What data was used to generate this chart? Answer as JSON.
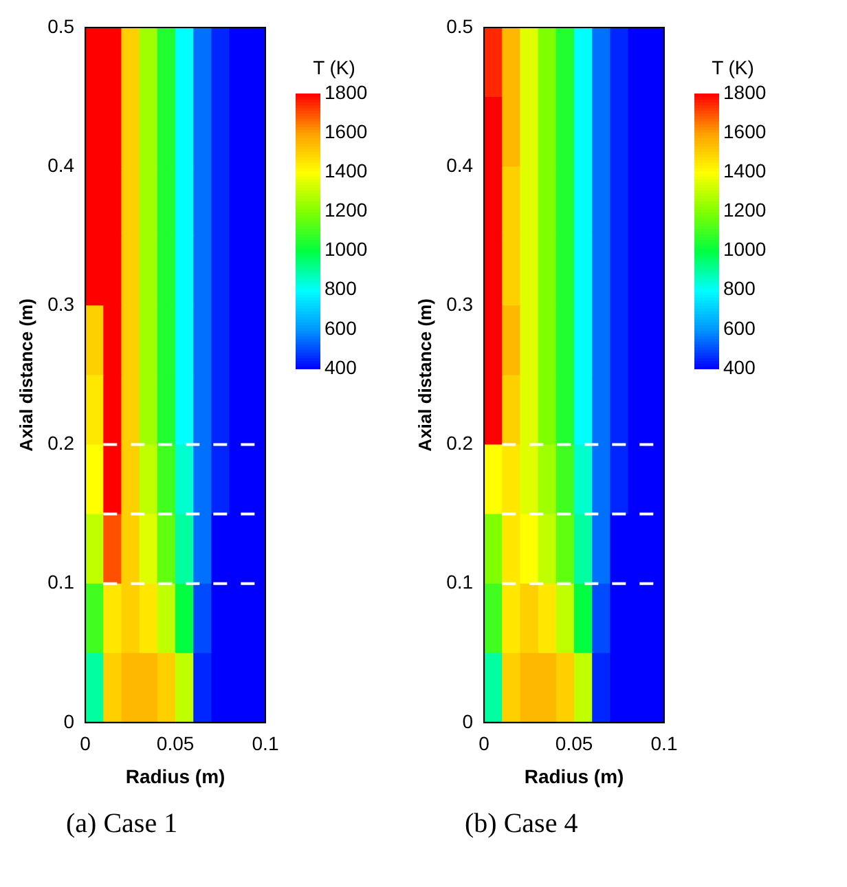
{
  "chart_data": [
    {
      "type": "heatmap",
      "title": "(a) Case 1",
      "xlabel": "Radius (m)",
      "ylabel": "Axial distance (m)",
      "xlim": [
        0,
        0.1
      ],
      "xticks": [
        0,
        0.05,
        0.1
      ],
      "ylim": [
        0,
        0.5
      ],
      "yticks": [
        0,
        0.1,
        0.2,
        0.3,
        0.4,
        0.5
      ],
      "clim": [
        400,
        1800
      ],
      "cticks": [
        400,
        600,
        800,
        1000,
        1200,
        1400,
        1600,
        1800
      ],
      "clabel": "T (K)",
      "cells": [
        [
          1800,
          1800,
          1500,
          1250,
          1050,
          800,
          550,
          450,
          400,
          400
        ],
        [
          1800,
          1800,
          1500,
          1250,
          1050,
          800,
          550,
          450,
          400,
          400
        ],
        [
          1800,
          1800,
          1500,
          1250,
          1050,
          800,
          550,
          450,
          400,
          400
        ],
        [
          1800,
          1800,
          1500,
          1250,
          1050,
          800,
          550,
          450,
          400,
          400
        ],
        [
          1500,
          1800,
          1500,
          1250,
          1050,
          800,
          550,
          450,
          400,
          400
        ],
        [
          1450,
          1800,
          1500,
          1250,
          1050,
          800,
          550,
          450,
          400,
          400
        ],
        [
          1400,
          1800,
          1500,
          1300,
          1100,
          850,
          550,
          450,
          400,
          400
        ],
        [
          1300,
          1700,
          1500,
          1350,
          1150,
          900,
          550,
          400,
          400,
          400
        ],
        [
          1100,
          1450,
          1500,
          1450,
          1300,
          1000,
          500,
          400,
          400,
          400
        ],
        [
          900,
          1500,
          1550,
          1550,
          1500,
          1300,
          450,
          400,
          400,
          400
        ]
      ],
      "ref_lines": [
        {
          "axis": "y",
          "value": 0.1,
          "color": "#ffffff",
          "line_style": "dashed"
        },
        {
          "axis": "y",
          "value": 0.15,
          "color": "#ffffff",
          "line_style": "dashed"
        },
        {
          "axis": "y",
          "value": 0.2,
          "color": "#ffffff",
          "line_style": "dashed"
        }
      ],
      "grid": false
    },
    {
      "type": "heatmap",
      "title": "(b) Case 4",
      "xlabel": "Radius (m)",
      "ylabel": "Axial distance (m)",
      "xlim": [
        0,
        0.1
      ],
      "xticks": [
        0,
        0.05,
        0.1
      ],
      "ylim": [
        0,
        0.5
      ],
      "yticks": [
        0,
        0.1,
        0.2,
        0.3,
        0.4,
        0.5
      ],
      "clim": [
        400,
        1800
      ],
      "cticks": [
        400,
        600,
        800,
        1000,
        1200,
        1400,
        1600,
        1800
      ],
      "clabel": "T (K)",
      "cells": [
        [
          1750,
          1550,
          1350,
          1200,
          1050,
          800,
          550,
          450,
          400,
          400
        ],
        [
          1800,
          1550,
          1350,
          1200,
          1050,
          800,
          550,
          450,
          400,
          400
        ],
        [
          1800,
          1500,
          1350,
          1200,
          1050,
          800,
          550,
          450,
          400,
          400
        ],
        [
          1800,
          1500,
          1350,
          1200,
          1050,
          800,
          550,
          450,
          400,
          400
        ],
        [
          1800,
          1550,
          1350,
          1200,
          1050,
          800,
          550,
          450,
          400,
          400
        ],
        [
          1800,
          1500,
          1350,
          1200,
          1050,
          800,
          550,
          450,
          400,
          400
        ],
        [
          1400,
          1450,
          1350,
          1250,
          1100,
          850,
          550,
          450,
          400,
          400
        ],
        [
          1200,
          1450,
          1400,
          1300,
          1150,
          900,
          550,
          400,
          400,
          400
        ],
        [
          1100,
          1450,
          1500,
          1450,
          1300,
          1000,
          500,
          400,
          400,
          400
        ],
        [
          900,
          1500,
          1550,
          1550,
          1500,
          1300,
          450,
          400,
          400,
          400
        ]
      ],
      "ref_lines": [
        {
          "axis": "y",
          "value": 0.1,
          "color": "#ffffff",
          "line_style": "dashed"
        },
        {
          "axis": "y",
          "value": 0.15,
          "color": "#ffffff",
          "line_style": "dashed"
        },
        {
          "axis": "y",
          "value": 0.2,
          "color": "#ffffff",
          "line_style": "dashed"
        }
      ],
      "grid": false
    }
  ]
}
